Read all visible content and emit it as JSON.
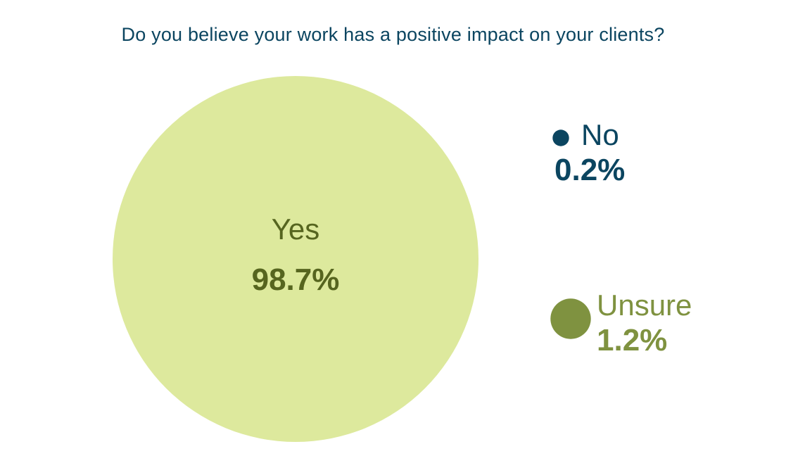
{
  "chart_data": {
    "type": "bubble",
    "title": "Do you believe your work has a positive impact on your clients?",
    "unit": "%",
    "categories": [
      "Yes",
      "No",
      "Unsure"
    ],
    "values": [
      98.7,
      0.2,
      1.2
    ],
    "value_labels": [
      "98.7%",
      "0.2%",
      "1.2%"
    ],
    "colors": [
      "#dde99d",
      "#0b4560",
      "#7f9240"
    ],
    "label_colors": [
      "#56651f",
      "#0b4560",
      "#7f9240"
    ]
  }
}
